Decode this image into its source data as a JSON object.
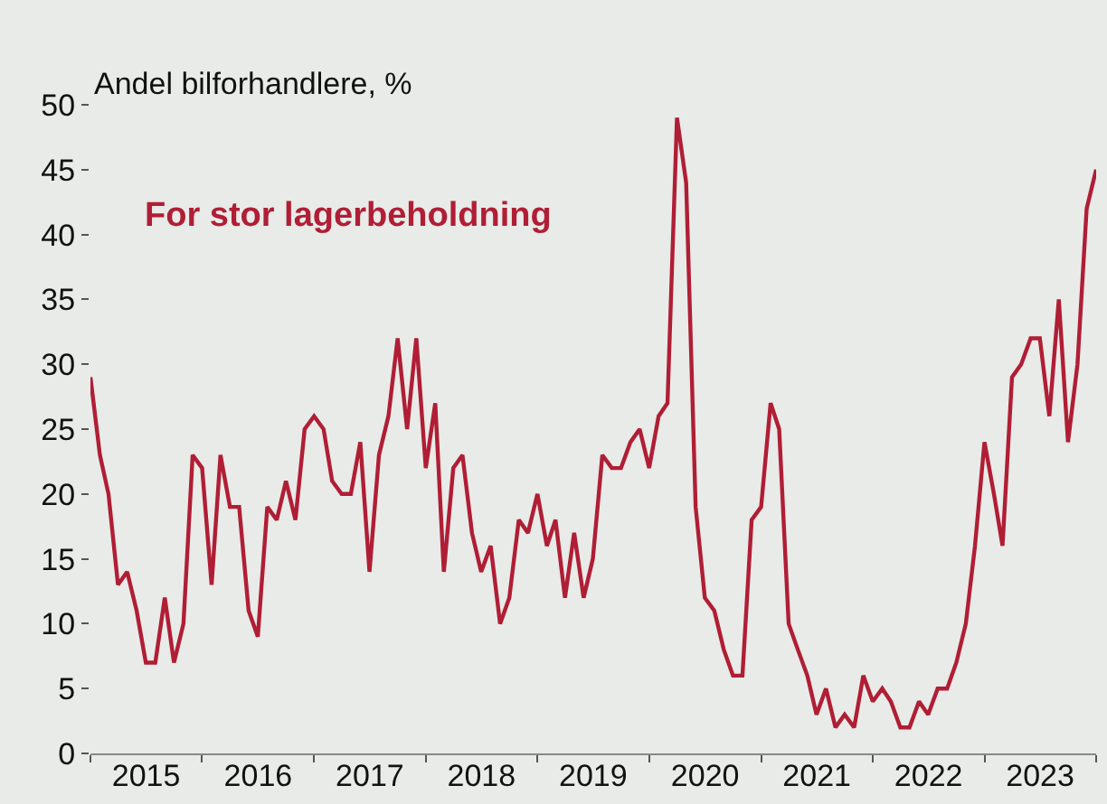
{
  "chart_data": {
    "type": "line",
    "ylabel": "Andel bilforhandlere, %",
    "x": [
      "2015-01",
      "2015-02",
      "2015-03",
      "2015-04",
      "2015-05",
      "2015-06",
      "2015-07",
      "2015-08",
      "2015-09",
      "2015-10",
      "2015-11",
      "2015-12",
      "2016-01",
      "2016-02",
      "2016-03",
      "2016-04",
      "2016-05",
      "2016-06",
      "2016-07",
      "2016-08",
      "2016-09",
      "2016-10",
      "2016-11",
      "2016-12",
      "2017-01",
      "2017-02",
      "2017-03",
      "2017-04",
      "2017-05",
      "2017-06",
      "2017-07",
      "2017-08",
      "2017-09",
      "2017-10",
      "2017-11",
      "2017-12",
      "2018-01",
      "2018-02",
      "2018-03",
      "2018-04",
      "2018-05",
      "2018-06",
      "2018-07",
      "2018-08",
      "2018-09",
      "2018-10",
      "2018-11",
      "2018-12",
      "2019-01",
      "2019-02",
      "2019-03",
      "2019-04",
      "2019-05",
      "2019-06",
      "2019-07",
      "2019-08",
      "2019-09",
      "2019-10",
      "2019-11",
      "2019-12",
      "2020-01",
      "2020-02",
      "2020-03",
      "2020-04",
      "2020-05",
      "2020-06",
      "2020-07",
      "2020-08",
      "2020-09",
      "2020-10",
      "2020-11",
      "2020-12",
      "2021-01",
      "2021-02",
      "2021-03",
      "2021-04",
      "2021-05",
      "2021-06",
      "2021-07",
      "2021-08",
      "2021-09",
      "2021-10",
      "2021-11",
      "2021-12",
      "2022-01",
      "2022-02",
      "2022-03",
      "2022-04",
      "2022-05",
      "2022-06",
      "2022-07",
      "2022-08",
      "2022-09",
      "2022-10",
      "2022-11",
      "2022-12",
      "2023-01",
      "2023-02",
      "2023-03",
      "2023-04",
      "2023-05",
      "2023-06",
      "2023-07",
      "2023-08",
      "2023-09",
      "2023-10",
      "2023-11",
      "2023-12",
      "2024-01"
    ],
    "series": [
      {
        "name": "For stor lagerbeholdning",
        "color": "#b01e35",
        "values": [
          29,
          23,
          20,
          13,
          14,
          11,
          7,
          7,
          12,
          7,
          10,
          23,
          22,
          13,
          23,
          19,
          19,
          11,
          9,
          19,
          18,
          21,
          18,
          25,
          26,
          25,
          21,
          20,
          20,
          24,
          14,
          23,
          26,
          32,
          25,
          32,
          22,
          27,
          14,
          22,
          23,
          17,
          14,
          16,
          10,
          12,
          18,
          17,
          20,
          16,
          18,
          12,
          17,
          12,
          15,
          23,
          22,
          22,
          24,
          25,
          22,
          26,
          27,
          49,
          44,
          19,
          12,
          11,
          8,
          6,
          6,
          18,
          19,
          27,
          25,
          10,
          8,
          6,
          3,
          5,
          2,
          3,
          2,
          6,
          4,
          5,
          4,
          2,
          2,
          4,
          3,
          5,
          5,
          7,
          10,
          16,
          24,
          20,
          16,
          29,
          30,
          32,
          32,
          26,
          35,
          24,
          30,
          42,
          45
        ]
      }
    ],
    "xticks": [
      {
        "value": "2015-01-01",
        "label": null
      },
      {
        "value": "2015-07-02",
        "label": "2015"
      },
      {
        "value": "2016-01-01",
        "label": null
      },
      {
        "value": "2016-07-02",
        "label": "2016"
      },
      {
        "value": "2017-01-01",
        "label": null
      },
      {
        "value": "2017-07-02",
        "label": "2017"
      },
      {
        "value": "2018-01-01",
        "label": null
      },
      {
        "value": "2018-07-02",
        "label": "2018"
      },
      {
        "value": "2019-01-01",
        "label": null
      },
      {
        "value": "2019-07-02",
        "label": "2019"
      },
      {
        "value": "2020-01-01",
        "label": null
      },
      {
        "value": "2020-07-02",
        "label": "2020"
      },
      {
        "value": "2021-01-01",
        "label": null
      },
      {
        "value": "2021-07-02",
        "label": "2021"
      },
      {
        "value": "2022-01-01",
        "label": null
      },
      {
        "value": "2022-07-02",
        "label": "2022"
      },
      {
        "value": "2023-01-01",
        "label": null
      },
      {
        "value": "2023-07-02",
        "label": "2023"
      },
      {
        "value": "2024-01-01",
        "label": null
      }
    ],
    "xlim": [
      "2015-01-01",
      "2024-01-01"
    ],
    "ylim": [
      0,
      50
    ],
    "yticks": [
      0,
      5,
      10,
      15,
      20,
      25,
      30,
      35,
      40,
      45,
      50
    ],
    "grid": false,
    "legend": false,
    "marker": "none",
    "line_style": "solid"
  }
}
